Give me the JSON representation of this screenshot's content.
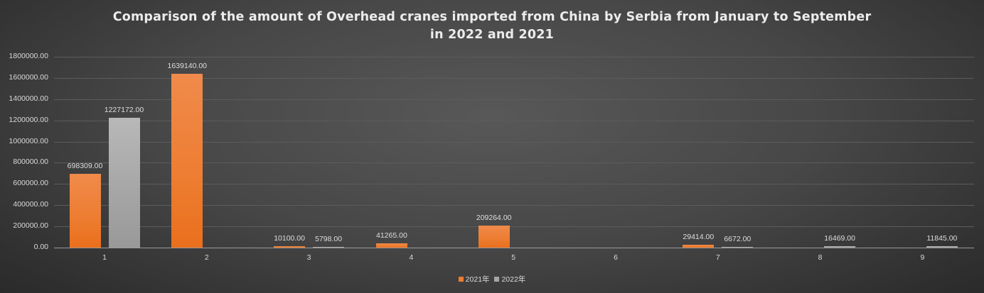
{
  "chart_data": {
    "type": "bar",
    "title": "Comparison of the amount of Overhead cranes imported from China by Serbia from January to September in 2022 and 2021",
    "title_lines": [
      "Comparison of the amount of Overhead cranes imported from China by Serbia from January to September",
      "in 2022 and 2021"
    ],
    "xlabel": "",
    "ylabel": "",
    "categories": [
      "1",
      "2",
      "3",
      "4",
      "5",
      "6",
      "7",
      "8",
      "9"
    ],
    "series": [
      {
        "name": "2021年",
        "color": "#ed7d31",
        "values": [
          698309.0,
          1639140.0,
          10100.0,
          41265.0,
          209264.0,
          null,
          29414.0,
          null,
          null
        ],
        "labels": [
          "698309.00",
          "1639140.00",
          "10100.00",
          "41265.00",
          "209264.00",
          "",
          "29414.00",
          "",
          ""
        ]
      },
      {
        "name": "2022年",
        "color": "#a5a5a5",
        "values": [
          1227172.0,
          null,
          5798.0,
          null,
          null,
          null,
          6672.0,
          16469.0,
          11845.0
        ],
        "labels": [
          "1227172.00",
          "",
          "5798.00",
          "",
          "",
          "",
          "6672.00",
          "16469.00",
          "11845.00"
        ]
      }
    ],
    "ylim": [
      0,
      1800000
    ],
    "yticks": [
      "0.00",
      "200000.00",
      "400000.00",
      "600000.00",
      "800000.00",
      "1000000.00",
      "1200000.00",
      "1400000.00",
      "1600000.00",
      "1800000.00"
    ],
    "grid": true,
    "legend_position": "bottom"
  }
}
